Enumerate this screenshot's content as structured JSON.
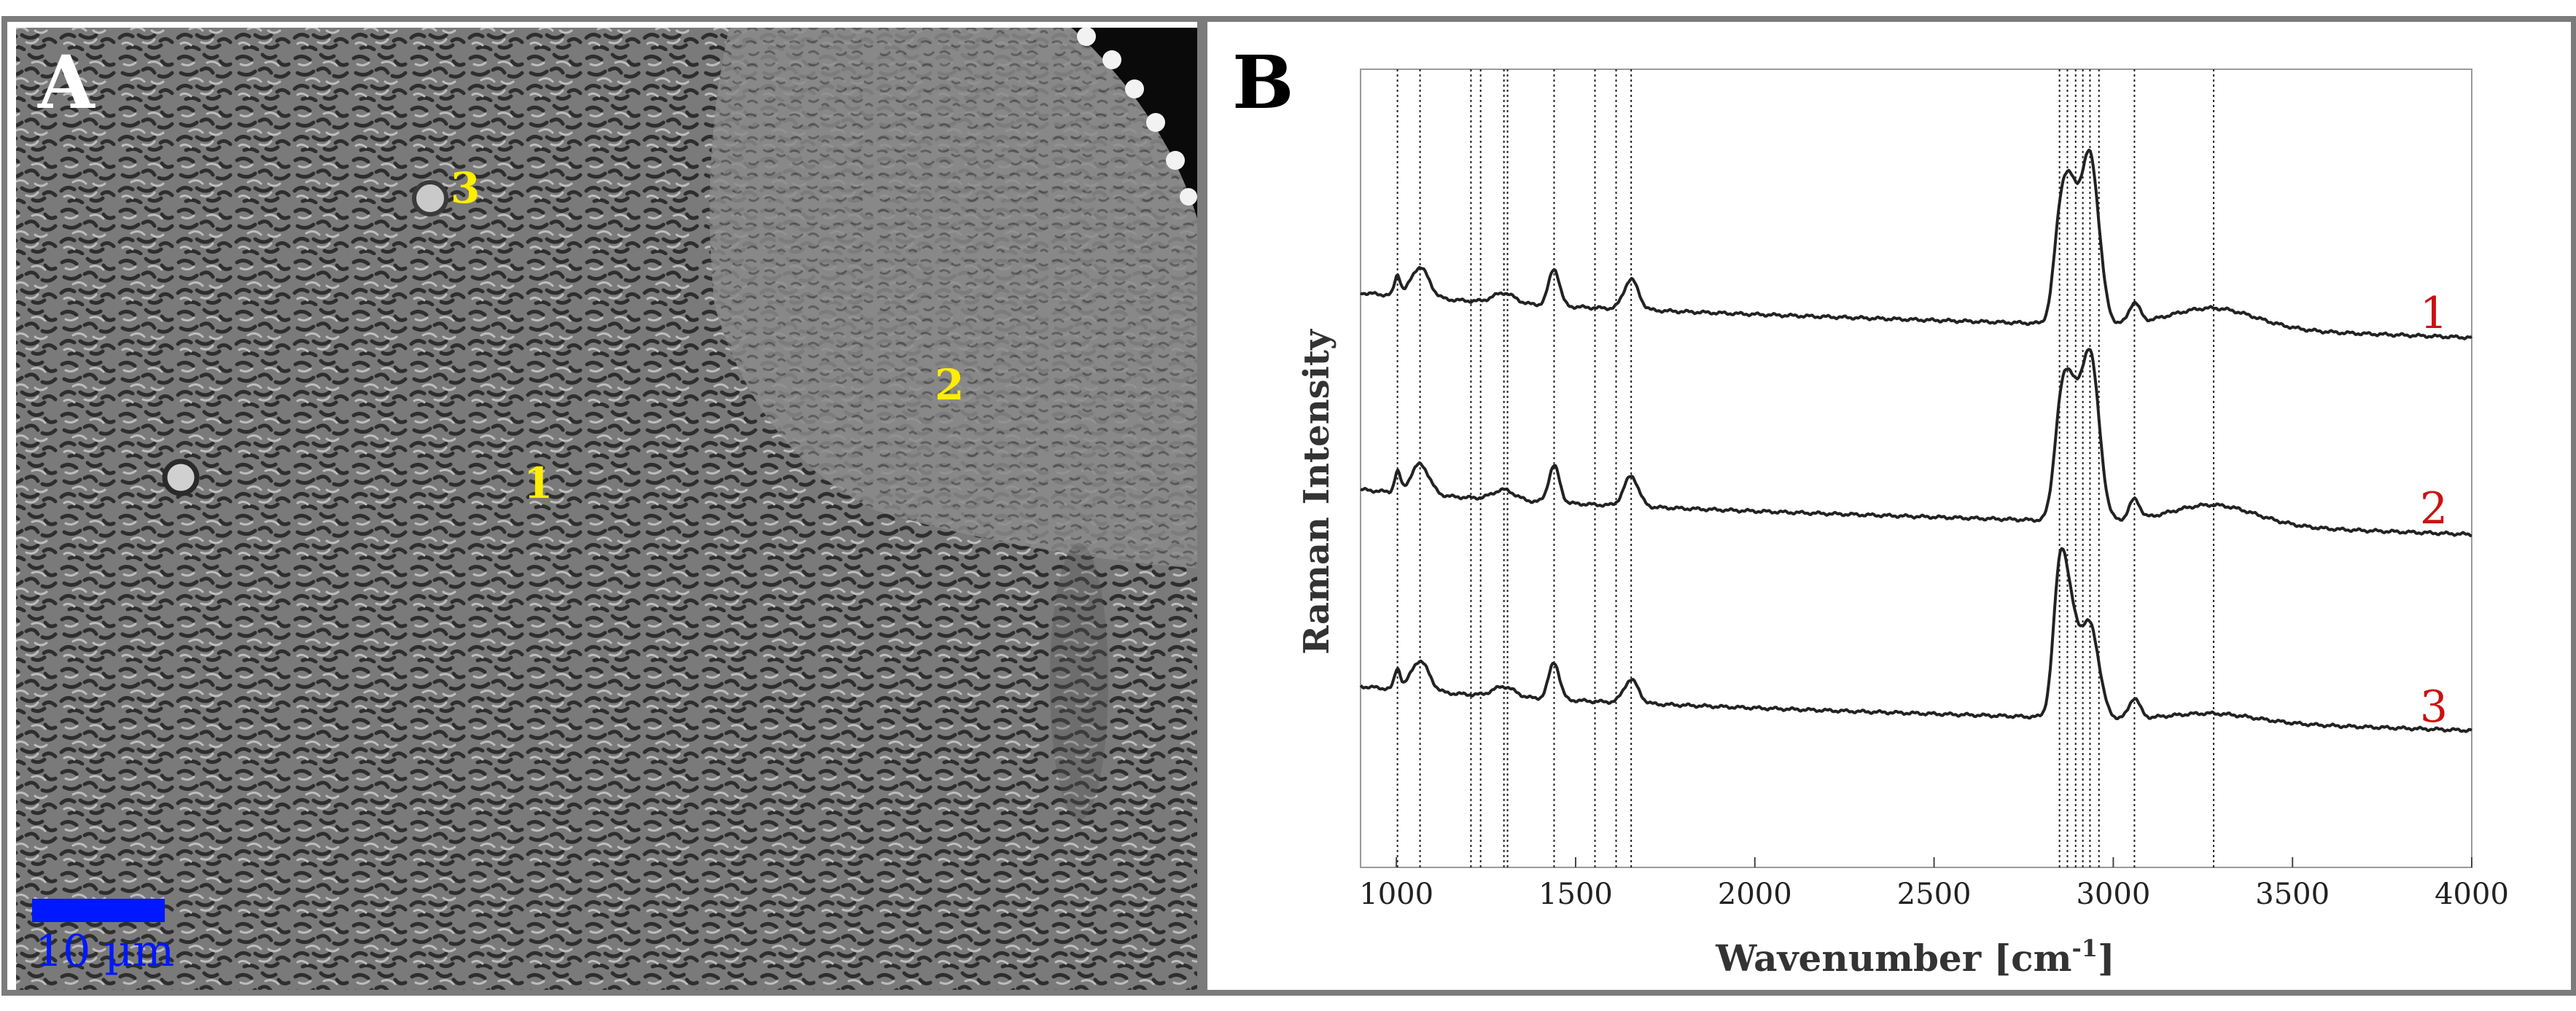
{
  "panel_a": {
    "label": "A",
    "markers": [
      {
        "label": "3"
      },
      {
        "label": "2"
      },
      {
        "label": "1"
      }
    ],
    "scalebar_label": "10 µm",
    "colors": {
      "marker": "#ffee00",
      "scalebar": "#0018ff"
    }
  },
  "panel_b": {
    "label": "B"
  },
  "chart_data": {
    "type": "line",
    "xlabel_main": "Wavenumber [cm",
    "xlabel_sup": "-1",
    "xlabel_end": "]",
    "ylabel": "Raman Intensity",
    "xlim": [
      900,
      4000
    ],
    "x_ticks": [
      1000,
      1500,
      2000,
      2500,
      3000,
      3500,
      4000
    ],
    "x_tick_labels": [
      "1000",
      "1500",
      "2000",
      "2500",
      "3000",
      "3500",
      "4000"
    ],
    "y_ticks": false,
    "reference_lines": [
      1003,
      1066,
      1208,
      1235,
      1300,
      1310,
      1440,
      1554,
      1613,
      1655,
      2850,
      2872,
      2895,
      2915,
      2935,
      2960,
      3059,
      3280
    ],
    "series": [
      {
        "name": "1",
        "color": "#222222"
      },
      {
        "name": "2",
        "color": "#222222"
      },
      {
        "name": "3",
        "color": "#222222"
      }
    ],
    "label_color": "#cc1111"
  }
}
